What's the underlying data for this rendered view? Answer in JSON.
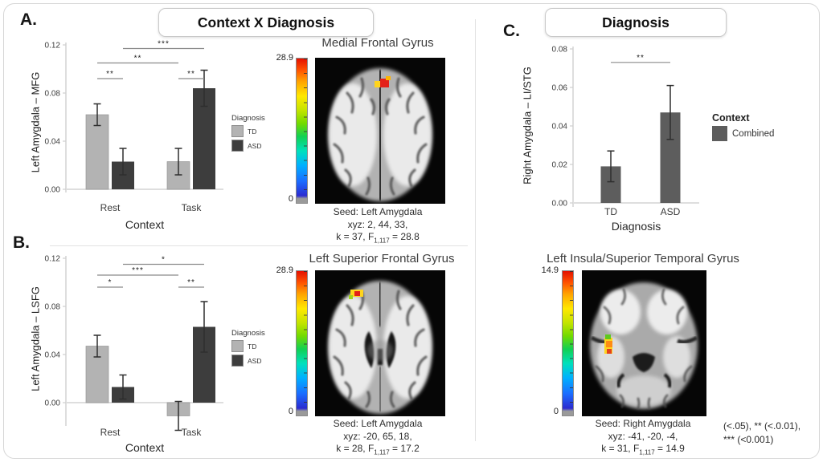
{
  "panels": {
    "a": "A.",
    "b": "B.",
    "c": "C."
  },
  "headers": {
    "left": "Context X Diagnosis",
    "right": "Diagnosis"
  },
  "footnote": {
    "line1": "(<.05), ** (<.0.01),",
    "line2": "*** (<0.001)"
  },
  "chart_data": [
    {
      "id": "A",
      "type": "bar",
      "ylabel": "Left Amygdala – MFG",
      "xlabel": "Context",
      "categories": [
        "Rest",
        "Task"
      ],
      "series": [
        {
          "name": "TD",
          "color": "#b3b3b3",
          "values": [
            0.062,
            0.023
          ],
          "errors": [
            0.009,
            0.011
          ]
        },
        {
          "name": "ASD",
          "color": "#3d3d3d",
          "values": [
            0.023,
            0.084
          ],
          "errors": [
            0.011,
            0.015
          ]
        }
      ],
      "ylim": [
        -0.005,
        0.125
      ],
      "yticks": [
        0,
        0.04,
        0.08,
        0.12
      ],
      "legend_title": "Diagnosis",
      "legend_position": "right",
      "grid": false,
      "significance": [
        {
          "a": [
            0,
            0
          ],
          "b": [
            0,
            1
          ],
          "label": "**",
          "y": 0.092
        },
        {
          "a": [
            1,
            0
          ],
          "b": [
            1,
            1
          ],
          "label": "**",
          "y": 0.092
        },
        {
          "a": [
            0,
            0
          ],
          "b": [
            1,
            0
          ],
          "label": "**",
          "y": 0.105
        },
        {
          "a": [
            0,
            1
          ],
          "b": [
            1,
            1
          ],
          "label": "***",
          "y": 0.117
        }
      ]
    },
    {
      "id": "B",
      "type": "bar",
      "ylabel": "Left Amygdala – LSFG",
      "xlabel": "Context",
      "categories": [
        "Rest",
        "Task"
      ],
      "series": [
        {
          "name": "TD",
          "color": "#b3b3b3",
          "values": [
            0.047,
            -0.011
          ],
          "errors": [
            0.009,
            0.012
          ]
        },
        {
          "name": "ASD",
          "color": "#3d3d3d",
          "values": [
            0.013,
            0.063
          ],
          "errors": [
            0.01,
            0.021
          ]
        }
      ],
      "ylim": [
        -0.028,
        0.125
      ],
      "yticks": [
        0,
        0.04,
        0.08,
        0.12
      ],
      "legend_title": "Diagnosis",
      "legend_position": "right",
      "grid": false,
      "significance": [
        {
          "a": [
            0,
            0
          ],
          "b": [
            0,
            1
          ],
          "label": "*",
          "y": 0.096
        },
        {
          "a": [
            1,
            0
          ],
          "b": [
            1,
            1
          ],
          "label": "**",
          "y": 0.096
        },
        {
          "a": [
            0,
            0
          ],
          "b": [
            1,
            0
          ],
          "label": "***",
          "y": 0.106
        },
        {
          "a": [
            0,
            1
          ],
          "b": [
            1,
            1
          ],
          "label": "*",
          "y": 0.115
        }
      ]
    },
    {
      "id": "C",
      "type": "bar",
      "ylabel": "Right Amygdala – LI/STG",
      "xlabel": "Diagnosis",
      "categories": [
        "TD",
        "ASD"
      ],
      "series": [
        {
          "name": "Combined",
          "color": "#5d5d5d",
          "values": [
            0.019,
            0.047
          ],
          "errors": [
            0.008,
            0.014
          ]
        }
      ],
      "ylim": [
        0,
        0.082
      ],
      "yticks": [
        0,
        0.02,
        0.04,
        0.06,
        0.08
      ],
      "legend_title": "Context",
      "legend_position": "right",
      "grid": false,
      "significance": [
        {
          "a": [
            0,
            0
          ],
          "b": [
            1,
            0
          ],
          "label": "**",
          "y": 0.073
        }
      ]
    }
  ],
  "brains": [
    {
      "title": "Medial Frontal Gyrus",
      "cbar_max": "28.9",
      "cbar_min": "0",
      "caption_seed": "Seed: Left Amygdala",
      "caption_xyz": "xyz: 2, 44, 33,",
      "stat_prefix": "k = 37, F",
      "stat_sub": "1,117",
      "stat_suffix": " = 28.8"
    },
    {
      "title": "Left Superior Frontal Gyrus",
      "cbar_max": "28.9",
      "cbar_min": "0",
      "caption_seed": "Seed: Left Amygdala",
      "caption_xyz": "xyz: -20, 65, 18,",
      "stat_prefix": "k = 28, F",
      "stat_sub": "1,117",
      "stat_suffix": " = 17.2"
    },
    {
      "title": "Left Insula/Superior Temporal Gyrus",
      "cbar_max": "14.9",
      "cbar_min": "0",
      "caption_seed": "Seed: Right Amygdala",
      "caption_xyz": "xyz: -41, -20, -4,",
      "stat_prefix": "k = 31, F",
      "stat_sub": "1,117",
      "stat_suffix": " = 14.9"
    }
  ]
}
